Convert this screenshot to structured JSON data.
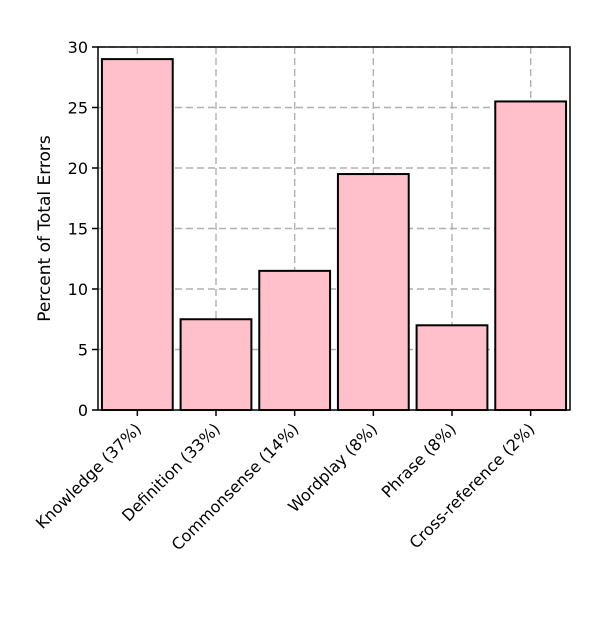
{
  "chart_data": {
    "type": "bar",
    "title": "",
    "xlabel": "",
    "ylabel": "Percent of Total Errors",
    "categories": [
      "Knowledge (37%)",
      "Definition (33%)",
      "Commonsense (14%)",
      "Wordplay (8%)",
      "Phrase (8%)",
      "Cross-reference (2%)"
    ],
    "values": [
      29,
      7.5,
      11.5,
      19.5,
      7,
      25.5
    ],
    "ylim": [
      0,
      30
    ],
    "yticks": [
      0,
      5,
      10,
      15,
      20,
      25,
      30
    ],
    "grid": true,
    "bar_color": "#ffc0cb",
    "edge_color": "#000000",
    "grid_color": "#b0b0b0"
  }
}
